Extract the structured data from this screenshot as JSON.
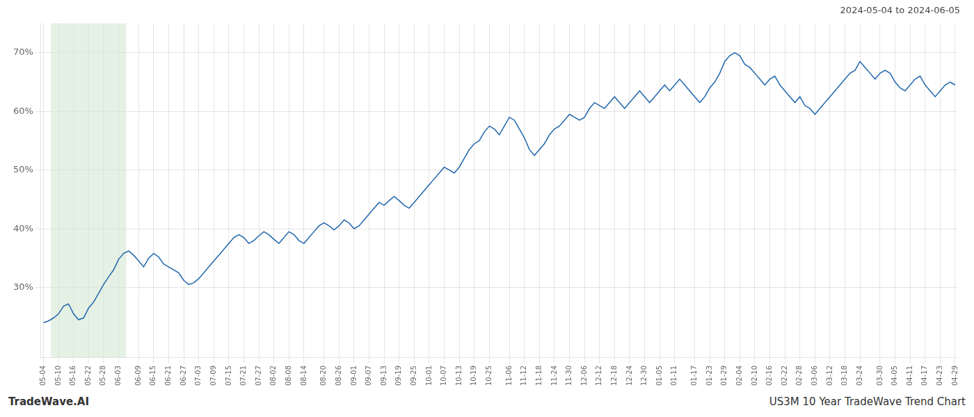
{
  "chart_data": {
    "type": "line",
    "title": "2024-05-04 to 2024-06-05",
    "annotations": [
      "TradeWave.AI",
      "US3M 10 Year TradeWave Trend Chart"
    ],
    "color": "#2166ac",
    "grid": true,
    "shade": {
      "from": "05-10",
      "to": "06-03",
      "color": "#d4e8d4"
    },
    "ylim": [
      18,
      75
    ],
    "yticks": [
      {
        "value": 30,
        "label": "30%"
      },
      {
        "value": 40,
        "label": "40%"
      },
      {
        "value": 50,
        "label": "50%"
      },
      {
        "value": 60,
        "label": "60%"
      },
      {
        "value": 70,
        "label": "70%"
      }
    ],
    "categories": [
      "05-04",
      null,
      null,
      "05-10",
      null,
      null,
      "05-16",
      null,
      null,
      "05-22",
      null,
      null,
      "05-28",
      null,
      null,
      "06-03",
      null,
      null,
      null,
      "06-09",
      null,
      null,
      "06-15",
      null,
      null,
      "06-21",
      null,
      null,
      "06-27",
      null,
      null,
      "07-03",
      null,
      null,
      "07-09",
      null,
      null,
      "07-15",
      null,
      null,
      "07-21",
      null,
      null,
      "07-27",
      null,
      null,
      "08-02",
      null,
      null,
      "08-08",
      null,
      null,
      "08-14",
      null,
      null,
      null,
      "08-20",
      null,
      null,
      "08-26",
      null,
      null,
      "09-01",
      null,
      null,
      "09-07",
      null,
      null,
      "09-13",
      null,
      null,
      "09-19",
      null,
      null,
      "09-25",
      null,
      null,
      "10-01",
      null,
      null,
      "10-07",
      null,
      null,
      "10-13",
      null,
      null,
      "10-19",
      null,
      null,
      "10-25",
      null,
      null,
      null,
      "11-06",
      null,
      null,
      "11-12",
      null,
      null,
      "11-18",
      null,
      null,
      "11-24",
      null,
      null,
      "11-30",
      null,
      null,
      "12-06",
      null,
      null,
      "12-12",
      null,
      null,
      "12-18",
      null,
      null,
      "12-24",
      null,
      null,
      "12-30",
      null,
      null,
      "01-05",
      null,
      null,
      "01-11",
      null,
      null,
      null,
      "01-17",
      null,
      null,
      "01-23",
      null,
      null,
      "01-29",
      null,
      null,
      "02-04",
      null,
      null,
      "02-10",
      null,
      null,
      "02-16",
      null,
      null,
      "02-22",
      null,
      null,
      "02-28",
      null,
      null,
      "03-06",
      null,
      null,
      "03-12",
      null,
      null,
      "03-18",
      null,
      null,
      "03-24",
      null,
      null,
      null,
      "03-30",
      null,
      null,
      "04-05",
      null,
      null,
      "04-11",
      null,
      null,
      "04-17",
      null,
      null,
      "04-23",
      null,
      null,
      "04-29"
    ],
    "values": [
      24.0,
      24.3,
      24.8,
      25.5,
      26.8,
      27.2,
      25.5,
      24.5,
      24.8,
      26.5,
      27.5,
      29.0,
      30.5,
      31.8,
      33.0,
      34.8,
      35.8,
      36.2,
      35.5,
      34.5,
      33.5,
      35.0,
      35.8,
      35.2,
      34.0,
      33.5,
      33.0,
      32.5,
      31.2,
      30.5,
      30.8,
      31.5,
      32.5,
      33.5,
      34.5,
      35.5,
      36.5,
      37.5,
      38.5,
      39.0,
      38.5,
      37.5,
      38.0,
      38.8,
      39.5,
      39.0,
      38.2,
      37.5,
      38.5,
      39.5,
      39.0,
      38.0,
      37.5,
      38.5,
      39.5,
      40.5,
      41.0,
      40.5,
      39.8,
      40.5,
      41.5,
      41.0,
      40.0,
      40.5,
      41.5,
      42.5,
      43.5,
      44.5,
      44.0,
      44.8,
      45.5,
      44.8,
      44.0,
      43.5,
      44.5,
      45.5,
      46.5,
      47.5,
      48.5,
      49.5,
      50.5,
      50.0,
      49.5,
      50.5,
      52.0,
      53.5,
      54.5,
      55.0,
      56.5,
      57.5,
      57.0,
      56.0,
      57.5,
      59.0,
      58.5,
      57.0,
      55.5,
      53.5,
      52.5,
      53.5,
      54.5,
      56.0,
      57.0,
      57.5,
      58.5,
      59.5,
      59.0,
      58.5,
      59.0,
      60.5,
      61.5,
      61.0,
      60.5,
      61.5,
      62.5,
      61.5,
      60.5,
      61.5,
      62.5,
      63.5,
      62.5,
      61.5,
      62.5,
      63.5,
      64.5,
      63.5,
      64.5,
      65.5,
      64.5,
      63.5,
      62.5,
      61.5,
      62.5,
      64.0,
      65.0,
      66.5,
      68.5,
      69.5,
      70.0,
      69.5,
      68.0,
      67.5,
      66.5,
      65.5,
      64.5,
      65.5,
      66.0,
      64.5,
      63.5,
      62.5,
      61.5,
      62.5,
      61.0,
      60.5,
      59.5,
      60.5,
      61.5,
      62.5,
      63.5,
      64.5,
      65.5,
      66.5,
      67.0,
      68.5,
      67.5,
      66.5,
      65.5,
      66.5,
      67.0,
      66.5,
      65.0,
      64.0,
      63.5,
      64.5,
      65.5,
      66.0,
      64.5,
      63.5,
      62.5,
      63.5,
      64.5,
      65.0,
      64.5
    ]
  }
}
